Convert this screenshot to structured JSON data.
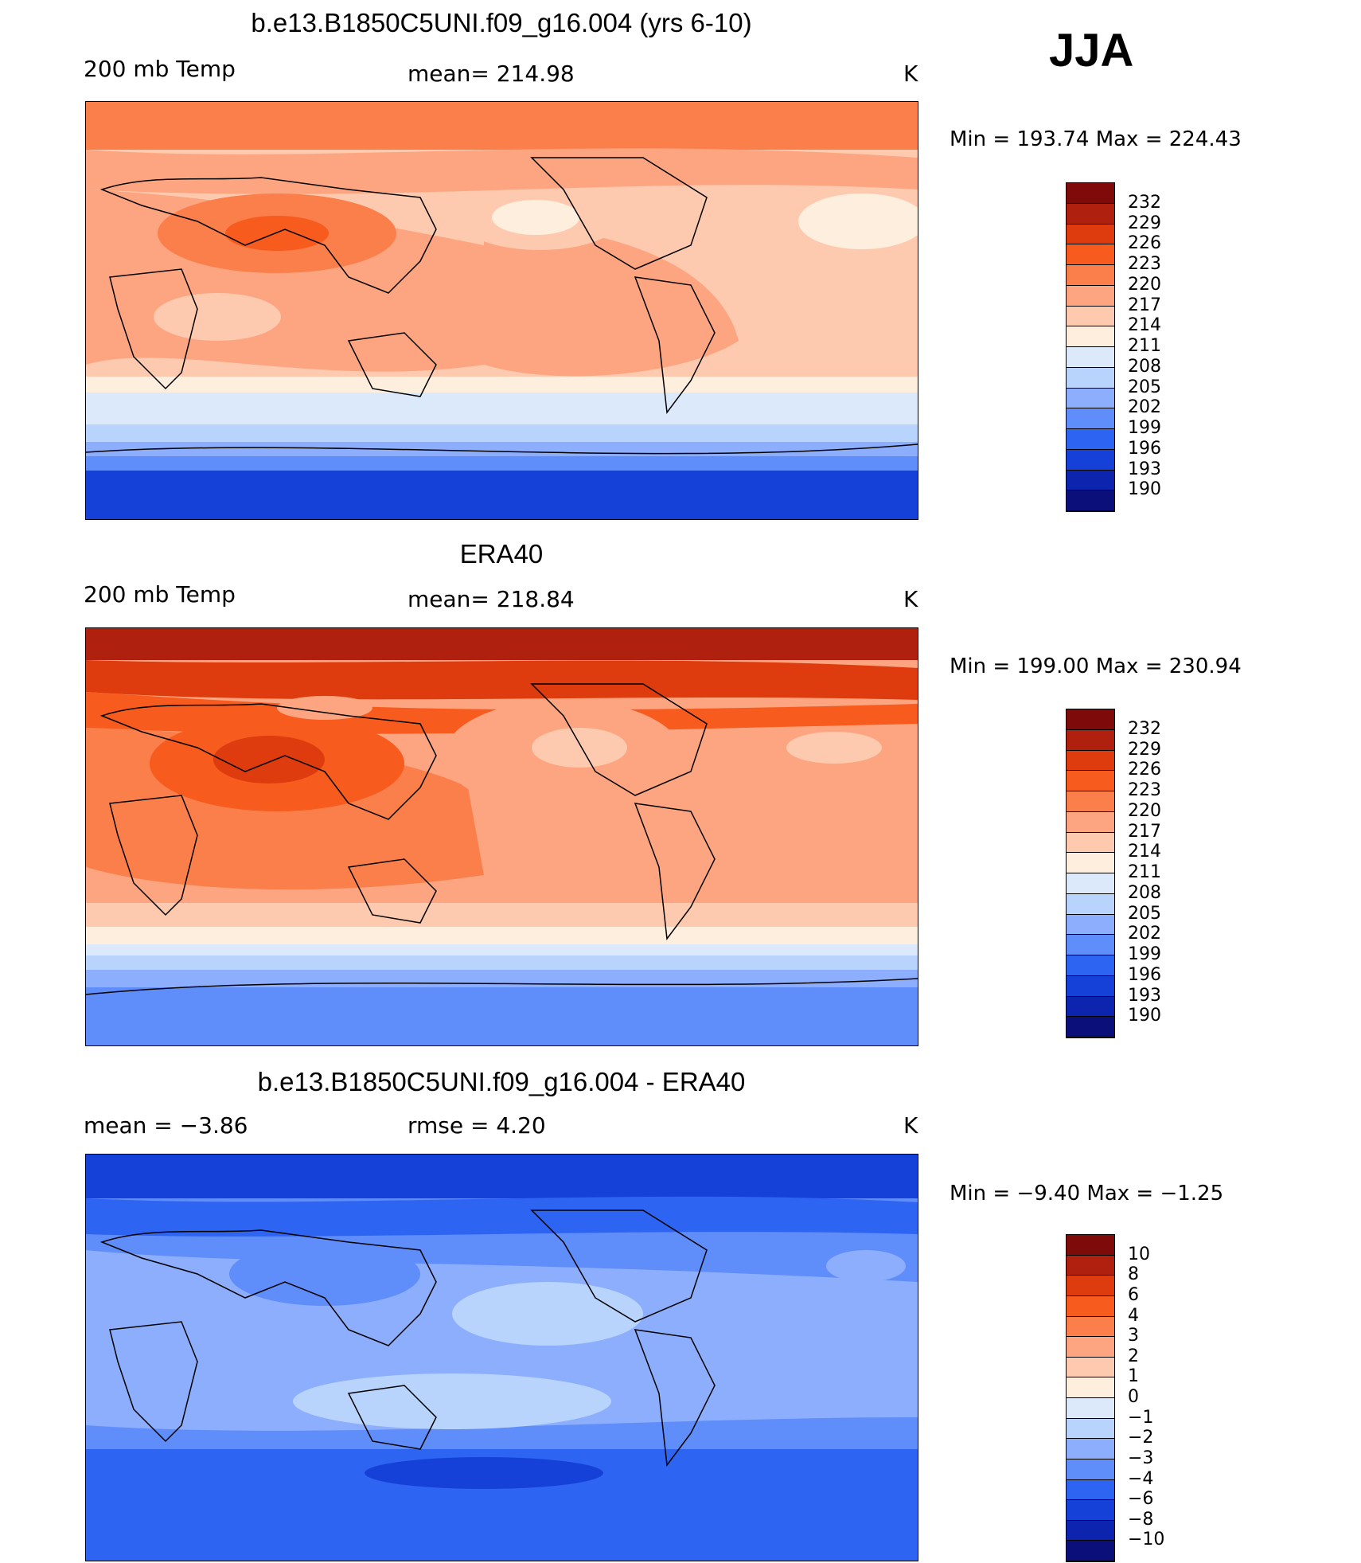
{
  "season": "JJA",
  "panels": [
    {
      "title": "b.e13.B1850C5UNI.f09_g16.004 (yrs 6-10)",
      "left_label": "200 mb Temp",
      "mid_label": "mean= 214.98",
      "units": "K",
      "minmax": "Min = 193.74 Max = 224.43",
      "levels": [
        "232",
        "229",
        "226",
        "223",
        "220",
        "217",
        "214",
        "211",
        "208",
        "205",
        "202",
        "199",
        "196",
        "193",
        "190"
      ]
    },
    {
      "title": "ERA40",
      "left_label": "200 mb Temp",
      "mid_label": "mean= 218.84",
      "units": "K",
      "minmax": "Min = 199.00 Max = 230.94",
      "levels": [
        "232",
        "229",
        "226",
        "223",
        "220",
        "217",
        "214",
        "211",
        "208",
        "205",
        "202",
        "199",
        "196",
        "193",
        "190"
      ]
    },
    {
      "title": "b.e13.B1850C5UNI.f09_g16.004 - ERA40",
      "left_label": "mean =   −3.86",
      "mid_label": "rmse =    4.20",
      "units": "K",
      "minmax": "Min =  −9.40 Max =  −1.25",
      "levels": [
        "10",
        "8",
        "6",
        "4",
        "3",
        "2",
        "1",
        "0",
        "−1",
        "−2",
        "−3",
        "−4",
        "−6",
        "−8",
        "−10"
      ]
    }
  ],
  "colorbar_colors": [
    "#7f0a0a",
    "#b0200f",
    "#de3b0e",
    "#f75b1e",
    "#fb7f4b",
    "#fca580",
    "#fdcab0",
    "#feeedd",
    "#dbe9fb",
    "#b8d3fc",
    "#8caefc",
    "#5f8dfa",
    "#2e64f2",
    "#1641d8",
    "#0d25ae",
    "#0a0f7a"
  ],
  "chart_data": [
    {
      "type": "heatmap",
      "title": "b.e13.B1850C5UNI.f09_g16.004 (yrs 6-10)",
      "variable": "200 mb Temp",
      "units": "K",
      "mean": 214.98,
      "min": 193.74,
      "max": 224.43,
      "contour_levels": [
        190,
        193,
        196,
        199,
        202,
        205,
        208,
        211,
        214,
        217,
        220,
        223,
        226,
        229,
        232
      ]
    },
    {
      "type": "heatmap",
      "title": "ERA40",
      "variable": "200 mb Temp",
      "units": "K",
      "mean": 218.84,
      "min": 199.0,
      "max": 230.94,
      "contour_levels": [
        190,
        193,
        196,
        199,
        202,
        205,
        208,
        211,
        214,
        217,
        220,
        223,
        226,
        229,
        232
      ]
    },
    {
      "type": "heatmap",
      "title": "b.e13.B1850C5UNI.f09_g16.004 - ERA40",
      "units": "K",
      "mean": -3.86,
      "rmse": 4.2,
      "min": -9.4,
      "max": -1.25,
      "contour_levels": [
        -10,
        -8,
        -6,
        -4,
        -3,
        -2,
        -1,
        0,
        1,
        2,
        3,
        4,
        6,
        8,
        10
      ]
    }
  ]
}
